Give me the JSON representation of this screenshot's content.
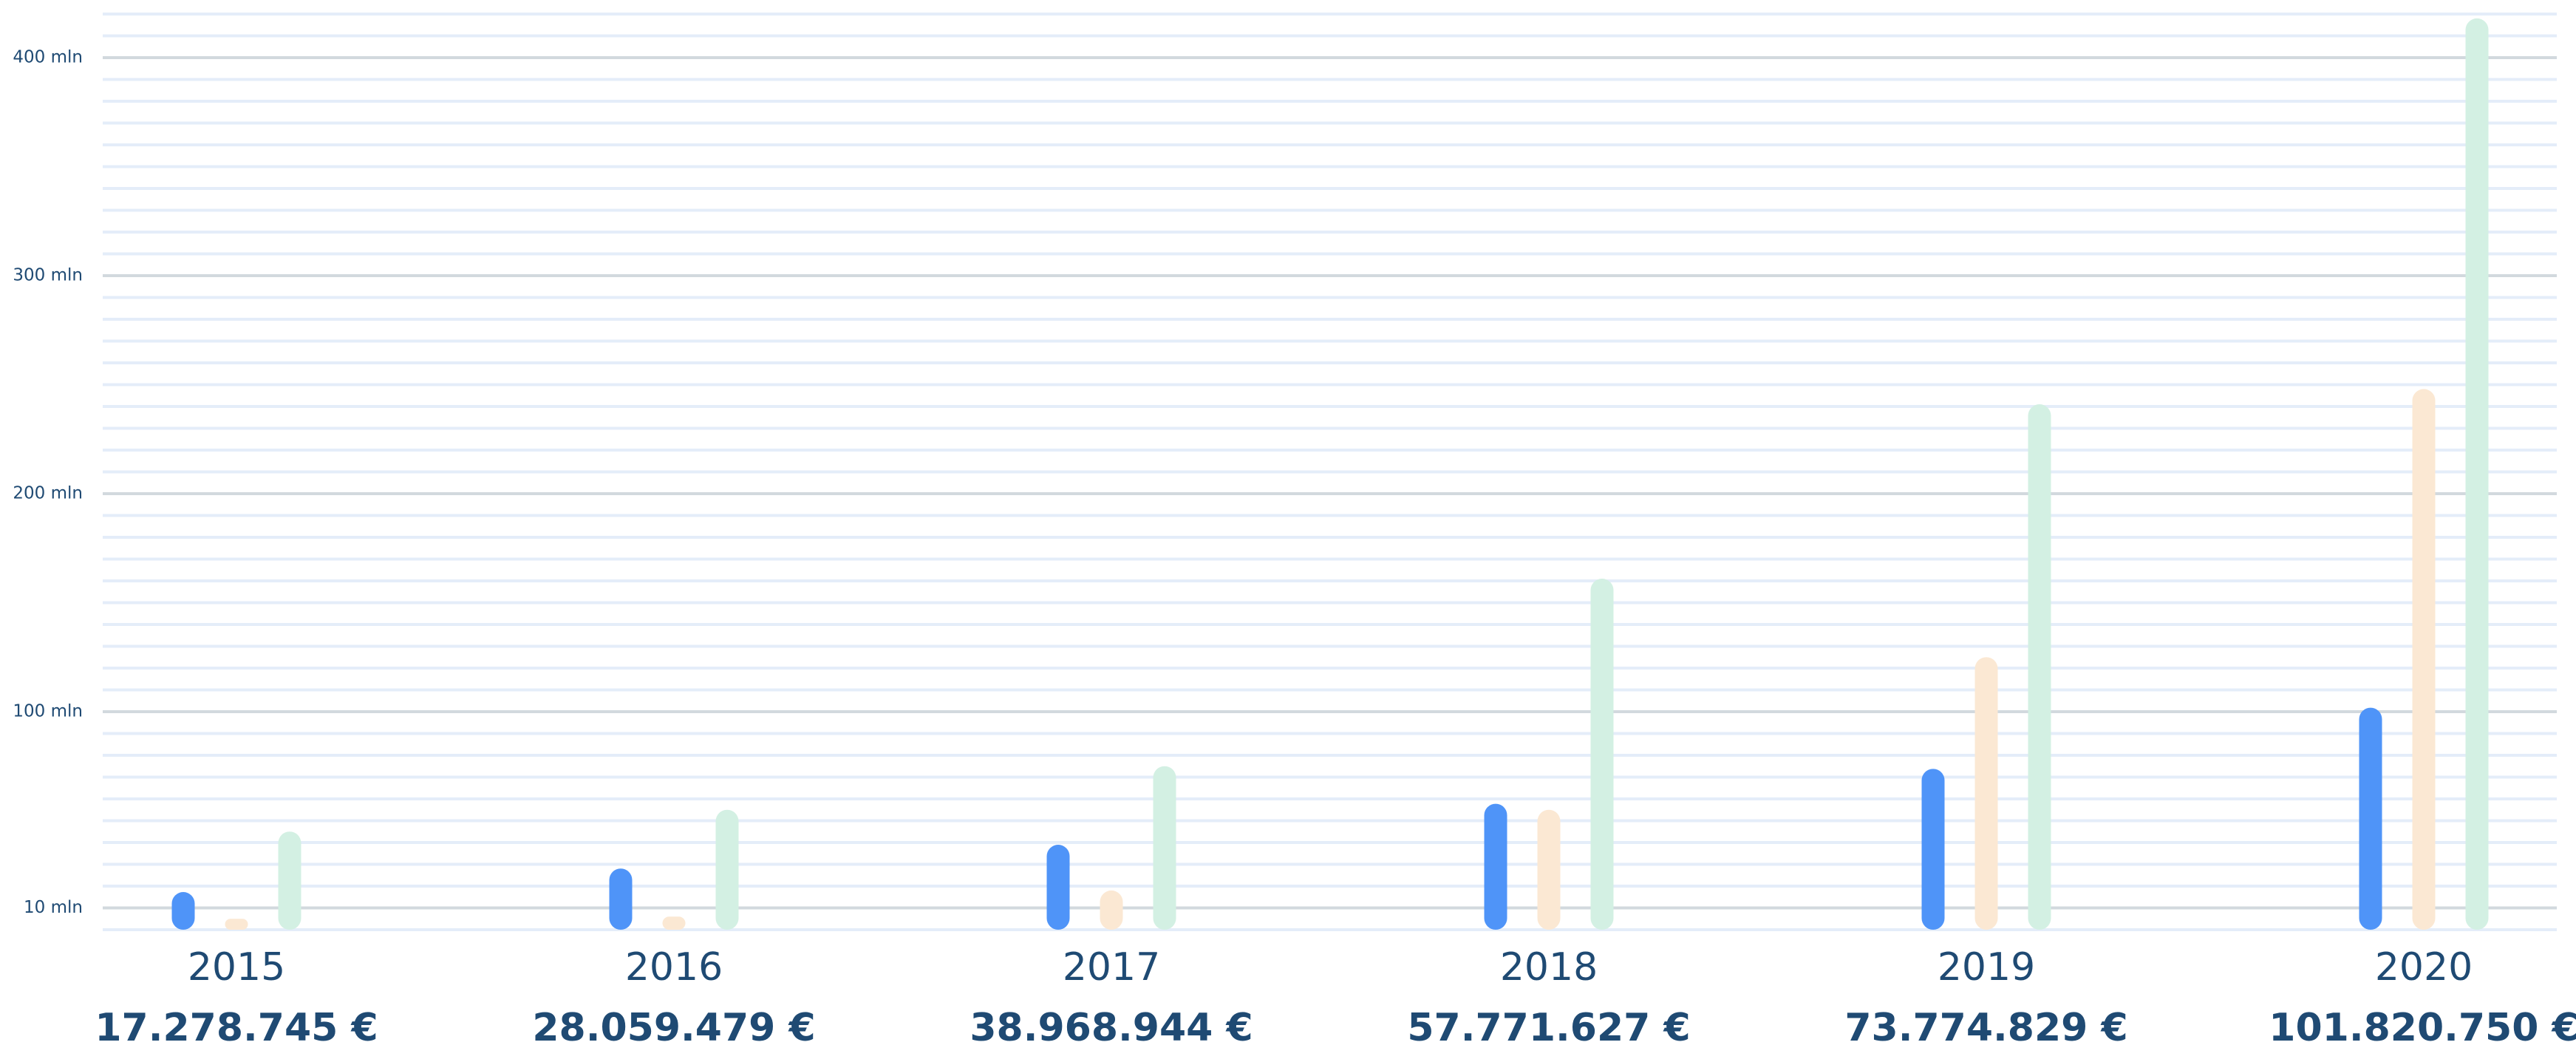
{
  "chart_data": {
    "type": "bar",
    "categories": [
      "2015",
      "2016",
      "2017",
      "2018",
      "2019",
      "2020"
    ],
    "series": [
      {
        "color": "#4f94f8",
        "values": [
          17.278745,
          28.059479,
          38.968944,
          57.771627,
          73.774829,
          101.82075
        ],
        "value_labels": [
          "17.278.745 €",
          "28.059.479 €",
          "38.968.944 €",
          "57.771.627 €",
          "73.774.829 €",
          "101.820.750 €"
        ]
      },
      {
        "color": "#fbe8d3",
        "values": [
          5,
          6,
          18,
          55,
          125,
          248
        ]
      },
      {
        "color": "#d3f0e3",
        "values": [
          45,
          55,
          75,
          161,
          241,
          418
        ]
      }
    ],
    "ylim": [
      0,
      420
    ],
    "yticks": [
      {
        "value": 10,
        "label": "10 mln"
      },
      {
        "value": 100,
        "label": "100 mln"
      },
      {
        "value": 200,
        "label": "200 mln"
      },
      {
        "value": 300,
        "label": "300 mln"
      },
      {
        "value": 400,
        "label": "400 mln"
      }
    ],
    "grid": true
  }
}
